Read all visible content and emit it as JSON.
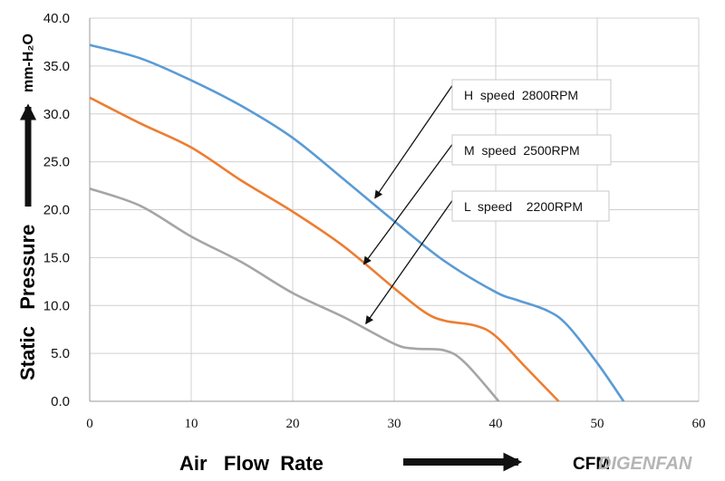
{
  "chart_data": {
    "type": "line",
    "xlim": [
      0,
      60
    ],
    "ylim": [
      0,
      40
    ],
    "x_ticks": [
      "0",
      "10",
      "20",
      "30",
      "40",
      "50",
      "60"
    ],
    "y_ticks": [
      "0.0",
      "5.0",
      "10.0",
      "15.0",
      "20.0",
      "25.0",
      "30.0",
      "35.0",
      "40.0"
    ],
    "grid": true,
    "ylabel": "Static   Pressure",
    "yunit": "mm-H₂O",
    "xlabel": "Air   Flow  Rate",
    "xunit": "CFM",
    "series": [
      {
        "name": "H  speed  2800RPM",
        "color": "#5b9bd5",
        "points": [
          [
            0,
            37.2
          ],
          [
            5,
            35.8
          ],
          [
            10,
            33.5
          ],
          [
            15,
            30.8
          ],
          [
            20,
            27.5
          ],
          [
            25,
            23.2
          ],
          [
            30,
            18.8
          ],
          [
            35,
            14.6
          ],
          [
            40,
            11.4
          ],
          [
            42,
            10.6
          ],
          [
            45,
            9.5
          ],
          [
            47,
            8.0
          ],
          [
            50,
            4.0
          ],
          [
            52.6,
            0
          ]
        ]
      },
      {
        "name": "M  speed  2500RPM",
        "color": "#ed7d31",
        "points": [
          [
            0,
            31.7
          ],
          [
            5,
            29.0
          ],
          [
            10,
            26.5
          ],
          [
            15,
            23.0
          ],
          [
            20,
            19.8
          ],
          [
            25,
            16.2
          ],
          [
            30,
            11.8
          ],
          [
            33,
            9.3
          ],
          [
            35,
            8.4
          ],
          [
            38,
            7.9
          ],
          [
            40,
            6.8
          ],
          [
            43,
            3.5
          ],
          [
            46.2,
            0
          ]
        ]
      },
      {
        "name": "L  speed    2200RPM",
        "color": "#a5a5a5",
        "points": [
          [
            0,
            22.2
          ],
          [
            5,
            20.4
          ],
          [
            10,
            17.2
          ],
          [
            15,
            14.5
          ],
          [
            20,
            11.3
          ],
          [
            25,
            8.8
          ],
          [
            30,
            6.0
          ],
          [
            32,
            5.5
          ],
          [
            35,
            5.3
          ],
          [
            37,
            4.0
          ],
          [
            40.3,
            0
          ]
        ]
      }
    ],
    "annotations": [
      {
        "text": "H  speed  2800RPM",
        "arrow_to": [
          28.1,
          21.2
        ]
      },
      {
        "text": "M  speed  2500RPM",
        "arrow_to": [
          27.0,
          14.3
        ]
      },
      {
        "text": "L  speed    2200RPM",
        "arrow_to": [
          27.2,
          8.1
        ]
      }
    ]
  },
  "logo": "DIGENFAN"
}
